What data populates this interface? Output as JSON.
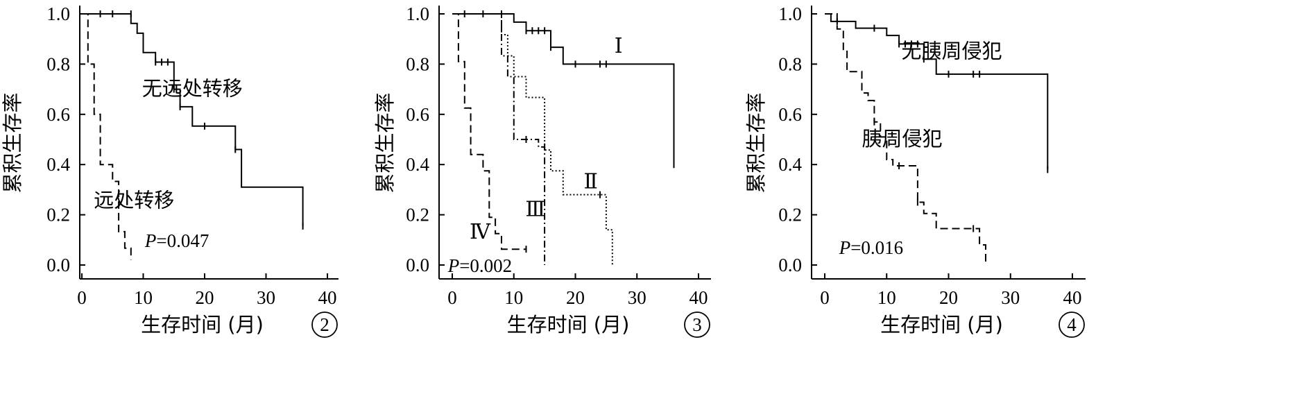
{
  "chart_data": [
    {
      "type": "line",
      "panel_label": "2",
      "xlabel": "生存时间 (月)",
      "ylabel": "累积生存率",
      "xlim": [
        0,
        40
      ],
      "ylim": [
        0,
        1.0
      ],
      "xticks": [
        "0",
        "10",
        "20",
        "30",
        "40"
      ],
      "yticks": [
        "0.0",
        "0.2",
        "0.4",
        "0.6",
        "0.8",
        "1.0"
      ],
      "p_value": {
        "prefix": "P",
        "text": "=0.047"
      },
      "series": [
        {
          "name": "无远处转移",
          "style": "solid",
          "points": [
            [
              0,
              1.0
            ],
            [
              8,
              1.0
            ],
            [
              8,
              0.962
            ],
            [
              9,
              0.962
            ],
            [
              9,
              0.923
            ],
            [
              10,
              0.923
            ],
            [
              10,
              0.846
            ],
            [
              12,
              0.846
            ],
            [
              12,
              0.808
            ],
            [
              15,
              0.808
            ],
            [
              15,
              0.7
            ],
            [
              16,
              0.7
            ],
            [
              16,
              0.63
            ],
            [
              18,
              0.63
            ],
            [
              18,
              0.553
            ],
            [
              25,
              0.553
            ],
            [
              25,
              0.46
            ],
            [
              26,
              0.46
            ],
            [
              26,
              0.31
            ],
            [
              36,
              0.31
            ],
            [
              36,
              0.155
            ]
          ],
          "censored": [
            [
              3,
              1.0
            ],
            [
              5,
              1.0
            ],
            [
              8,
              1.0
            ],
            [
              12,
              0.808
            ],
            [
              13,
              0.808
            ],
            [
              14,
              0.808
            ],
            [
              15,
              0.7
            ],
            [
              16,
              0.63
            ],
            [
              20,
              0.553
            ],
            [
              25,
              0.46
            ],
            [
              36,
              0.155
            ]
          ]
        },
        {
          "name": "远处转移",
          "style": "dashed",
          "points": [
            [
              0,
              1.0
            ],
            [
              1,
              1.0
            ],
            [
              1,
              0.8
            ],
            [
              2,
              0.8
            ],
            [
              2,
              0.6
            ],
            [
              3,
              0.6
            ],
            [
              3,
              0.4
            ],
            [
              5,
              0.4
            ],
            [
              5,
              0.333
            ],
            [
              6,
              0.333
            ],
            [
              6,
              0.133
            ],
            [
              7,
              0.133
            ],
            [
              7,
              0.067
            ],
            [
              8,
              0.067
            ],
            [
              8,
              0.02
            ]
          ],
          "censored": []
        }
      ],
      "annotations": [
        {
          "text": "无远处转移",
          "x": 18,
          "y": 0.7
        },
        {
          "text": "远处转移",
          "x": 8.5,
          "y": 0.255
        }
      ]
    },
    {
      "type": "line",
      "panel_label": "3",
      "xlabel": "生存时间 (月)",
      "ylabel": "累积生存率",
      "xlim": [
        0,
        40
      ],
      "ylim": [
        0,
        1.0
      ],
      "xticks": [
        "0",
        "10",
        "20",
        "30",
        "40"
      ],
      "yticks": [
        "0.0",
        "0.2",
        "0.4",
        "0.6",
        "0.8",
        "1.0"
      ],
      "p_value": {
        "prefix": "P",
        "text": "=0.002"
      },
      "series": [
        {
          "name": "Ⅰ",
          "style": "solid",
          "points": [
            [
              0,
              1.0
            ],
            [
              10,
              1.0
            ],
            [
              10,
              0.967
            ],
            [
              12,
              0.967
            ],
            [
              12,
              0.933
            ],
            [
              16,
              0.933
            ],
            [
              16,
              0.867
            ],
            [
              18,
              0.867
            ],
            [
              18,
              0.8
            ],
            [
              36,
              0.8
            ],
            [
              36,
              0.4
            ]
          ],
          "censored": [
            [
              2,
              1.0
            ],
            [
              5,
              1.0
            ],
            [
              8,
              1.0
            ],
            [
              12,
              0.933
            ],
            [
              13,
              0.933
            ],
            [
              14,
              0.933
            ],
            [
              15,
              0.933
            ],
            [
              16,
              0.867
            ],
            [
              20,
              0.8
            ],
            [
              24,
              0.8
            ],
            [
              25,
              0.8
            ],
            [
              36,
              0.4
            ]
          ]
        },
        {
          "name": "Ⅱ",
          "style": "dotted",
          "points": [
            [
              0,
              1.0
            ],
            [
              8,
              1.0
            ],
            [
              8,
              0.917
            ],
            [
              9,
              0.917
            ],
            [
              9,
              0.833
            ],
            [
              10,
              0.833
            ],
            [
              10,
              0.75
            ],
            [
              12,
              0.75
            ],
            [
              12,
              0.667
            ],
            [
              15,
              0.667
            ],
            [
              15,
              0.458
            ],
            [
              16,
              0.458
            ],
            [
              16,
              0.375
            ],
            [
              18,
              0.375
            ],
            [
              18,
              0.28
            ],
            [
              25,
              0.28
            ],
            [
              25,
              0.14
            ],
            [
              26,
              0.14
            ],
            [
              26,
              0.0
            ]
          ],
          "censored": [
            [
              24,
              0.28
            ]
          ]
        },
        {
          "name": "Ⅲ",
          "style": "dashdot",
          "points": [
            [
              0,
              1.0
            ],
            [
              8,
              1.0
            ],
            [
              8,
              0.833
            ],
            [
              9,
              0.833
            ],
            [
              9,
              0.75
            ],
            [
              10,
              0.75
            ],
            [
              10,
              0.5
            ],
            [
              14,
              0.5
            ],
            [
              14,
              0.47
            ],
            [
              15,
              0.47
            ],
            [
              15,
              0.0
            ]
          ],
          "censored": [
            [
              8,
              0.94
            ],
            [
              12,
              0.5
            ],
            [
              15,
              0.47
            ]
          ]
        },
        {
          "name": "Ⅳ",
          "style": "dashed",
          "points": [
            [
              0,
              1.0
            ],
            [
              1,
              1.0
            ],
            [
              1,
              0.81
            ],
            [
              2,
              0.81
            ],
            [
              2,
              0.625
            ],
            [
              3,
              0.625
            ],
            [
              3,
              0.44
            ],
            [
              5,
              0.44
            ],
            [
              5,
              0.375
            ],
            [
              6,
              0.375
            ],
            [
              6,
              0.19
            ],
            [
              7,
              0.19
            ],
            [
              7,
              0.125
            ],
            [
              8,
              0.125
            ],
            [
              8,
              0.063
            ],
            [
              12,
              0.063
            ]
          ],
          "censored": [
            [
              12,
              0.063
            ]
          ]
        }
      ],
      "annotations": [
        {
          "text": "Ⅰ",
          "x": 27,
          "y": 0.87
        },
        {
          "text": "Ⅱ",
          "x": 22.5,
          "y": 0.33
        },
        {
          "text": "Ⅲ",
          "x": 13.5,
          "y": 0.22
        },
        {
          "text": "Ⅳ",
          "x": 4.5,
          "y": 0.13
        }
      ]
    },
    {
      "type": "line",
      "panel_label": "4",
      "xlabel": "生存时间 (月)",
      "ylabel": "累积生存率",
      "xlim": [
        0,
        40
      ],
      "ylim": [
        0,
        1.0
      ],
      "xticks": [
        "0",
        "10",
        "20",
        "30",
        "40"
      ],
      "yticks": [
        "0.0",
        "0.2",
        "0.4",
        "0.6",
        "0.8",
        "1.0"
      ],
      "p_value": {
        "prefix": "P",
        "text": "=0.016"
      },
      "series": [
        {
          "name": "无胰周侵犯",
          "style": "solid",
          "points": [
            [
              0,
              1.0
            ],
            [
              1,
              1.0
            ],
            [
              1,
              0.97
            ],
            [
              5,
              0.97
            ],
            [
              5,
              0.943
            ],
            [
              10,
              0.943
            ],
            [
              10,
              0.914
            ],
            [
              12,
              0.914
            ],
            [
              12,
              0.88
            ],
            [
              16,
              0.88
            ],
            [
              16,
              0.82
            ],
            [
              18,
              0.82
            ],
            [
              18,
              0.76
            ],
            [
              36,
              0.76
            ],
            [
              36,
              0.38
            ]
          ],
          "censored": [
            [
              2,
              0.97
            ],
            [
              8,
              0.943
            ],
            [
              12,
              0.88
            ],
            [
              13,
              0.88
            ],
            [
              14,
              0.88
            ],
            [
              15,
              0.88
            ],
            [
              16,
              0.82
            ],
            [
              20,
              0.76
            ],
            [
              24,
              0.76
            ],
            [
              25,
              0.76
            ],
            [
              36,
              0.38
            ]
          ]
        },
        {
          "name": "胰周侵犯",
          "style": "dashed",
          "points": [
            [
              0,
              1.0
            ],
            [
              2,
              1.0
            ],
            [
              2,
              0.94
            ],
            [
              3,
              0.94
            ],
            [
              3,
              0.855
            ],
            [
              3.6,
              0.855
            ],
            [
              3.6,
              0.77
            ],
            [
              6,
              0.77
            ],
            [
              6,
              0.685
            ],
            [
              7,
              0.685
            ],
            [
              7,
              0.655
            ],
            [
              8,
              0.655
            ],
            [
              8,
              0.57
            ],
            [
              9,
              0.57
            ],
            [
              9,
              0.51
            ],
            [
              10,
              0.51
            ],
            [
              10,
              0.42
            ],
            [
              11,
              0.42
            ],
            [
              11,
              0.395
            ],
            [
              15,
              0.395
            ],
            [
              15,
              0.25
            ],
            [
              16,
              0.25
            ],
            [
              16,
              0.205
            ],
            [
              18,
              0.205
            ],
            [
              18,
              0.145
            ],
            [
              25,
              0.145
            ],
            [
              25,
              0.08
            ],
            [
              26,
              0.08
            ],
            [
              26,
              0.0
            ]
          ],
          "censored": [
            [
              8,
              0.57
            ],
            [
              12,
              0.395
            ],
            [
              15,
              0.25
            ],
            [
              24,
              0.145
            ]
          ]
        }
      ],
      "annotations": [
        {
          "text": "无胰周侵犯",
          "x": 20.5,
          "y": 0.85
        },
        {
          "text": "胰周侵犯",
          "x": 12.5,
          "y": 0.5
        }
      ]
    }
  ]
}
